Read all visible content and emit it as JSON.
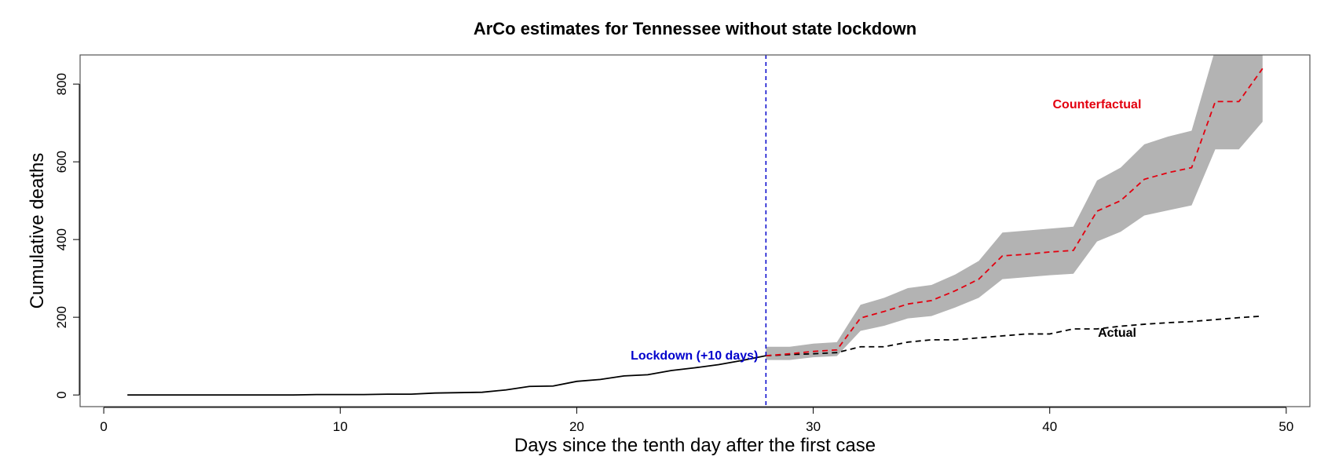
{
  "chart_data": {
    "type": "line",
    "title": "ArCo estimates for Tennessee without state lockdown",
    "xlabel": "Days since the tenth day after the first case",
    "ylabel": "Cumulative deaths",
    "xlim": [
      -1,
      51
    ],
    "ylim": [
      -30,
      875
    ],
    "xticks": [
      0,
      10,
      20,
      30,
      40,
      50
    ],
    "yticks": [
      0,
      200,
      400,
      600,
      800
    ],
    "grid": false,
    "colors": {
      "observed": "#000000",
      "actual": "#000000",
      "counterfactual": "#e3000f",
      "band": "#b3b3b3",
      "lockdown_line": "#0000cc"
    },
    "lockdown": {
      "x": 28,
      "label": "Lockdown (+10 days)"
    },
    "series": [
      {
        "key": "observed",
        "style": "solid",
        "x": [
          1,
          2,
          3,
          4,
          5,
          6,
          7,
          8,
          9,
          10,
          11,
          12,
          13,
          14,
          15,
          16,
          17,
          18,
          19,
          20,
          21,
          22,
          23,
          24,
          25,
          26,
          27,
          28
        ],
        "values": [
          0,
          0,
          0,
          0,
          0,
          0,
          0,
          0,
          1,
          1,
          1,
          2,
          2,
          5,
          6,
          7,
          13,
          22,
          23,
          35,
          40,
          49,
          52,
          63,
          70,
          78,
          89,
          101
        ]
      },
      {
        "key": "actual",
        "name": "Actual",
        "style": "dashed",
        "x": [
          28,
          29,
          30,
          31,
          32,
          33,
          34,
          35,
          36,
          37,
          38,
          39,
          40,
          41,
          42,
          43,
          44,
          45,
          46,
          47,
          48,
          49
        ],
        "values": [
          101,
          104,
          106,
          109,
          124,
          124,
          136,
          142,
          142,
          147,
          152,
          157,
          157,
          170,
          170,
          177,
          182,
          186,
          189,
          194,
          199,
          203
        ]
      },
      {
        "key": "counterfactual",
        "name": "Counterfactual",
        "style": "dashed",
        "x": [
          28,
          29,
          30,
          31,
          32,
          33,
          34,
          35,
          36,
          37,
          38,
          39,
          40,
          41,
          42,
          43,
          44,
          45,
          46,
          47,
          48,
          49
        ],
        "values": [
          101,
          106,
          112,
          116,
          198,
          215,
          234,
          243,
          268,
          298,
          358,
          362,
          368,
          372,
          473,
          500,
          555,
          572,
          585,
          755,
          755,
          840
        ]
      }
    ],
    "band": {
      "x": [
        28,
        29,
        30,
        31,
        32,
        33,
        34,
        35,
        36,
        37,
        38,
        39,
        40,
        41,
        42,
        43,
        44,
        45,
        46,
        47,
        48,
        49
      ],
      "upper": [
        124,
        124,
        132,
        136,
        232,
        250,
        275,
        283,
        310,
        345,
        418,
        423,
        428,
        433,
        552,
        585,
        645,
        665,
        680,
        890,
        890,
        890
      ],
      "lower": [
        90,
        90,
        97,
        100,
        165,
        178,
        197,
        203,
        225,
        250,
        298,
        303,
        308,
        312,
        395,
        420,
        462,
        475,
        488,
        632,
        632,
        703
      ]
    }
  }
}
